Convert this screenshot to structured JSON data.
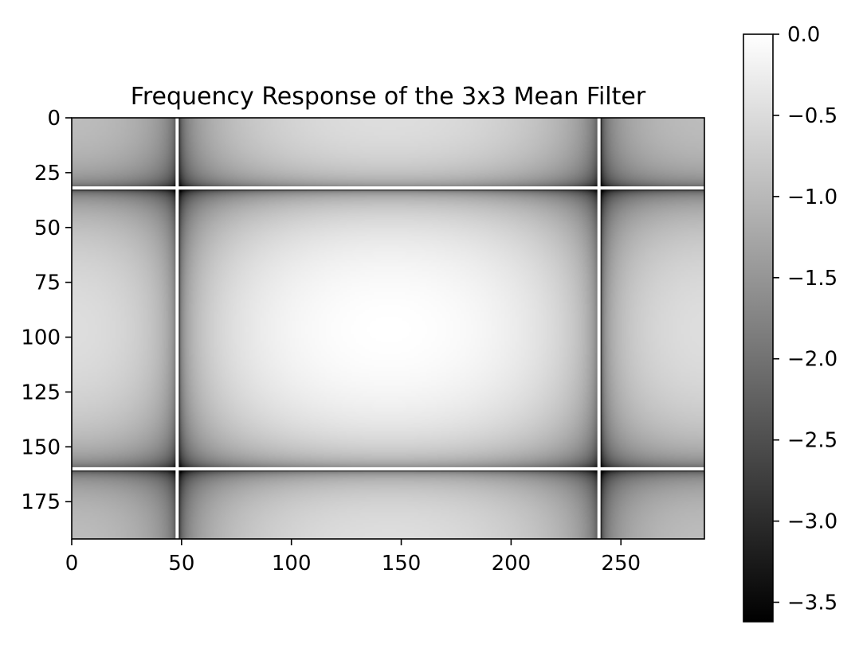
{
  "chart_data": {
    "type": "heatmap",
    "title": "Frequency Response of the 3x3 Mean Filter",
    "xlabel": "",
    "ylabel": "",
    "image_size": {
      "width": 288,
      "height": 192
    },
    "xlim": [
      0,
      288
    ],
    "ylim": [
      192,
      0
    ],
    "x_ticks": [
      0,
      50,
      100,
      150,
      200,
      250
    ],
    "x_tick_labels": [
      "0",
      "50",
      "100",
      "150",
      "200",
      "250"
    ],
    "y_ticks": [
      0,
      25,
      50,
      75,
      100,
      125,
      150,
      175
    ],
    "y_tick_labels": [
      "0",
      "25",
      "50",
      "75",
      "100",
      "125",
      "150",
      "175"
    ],
    "colormap": "gray",
    "colorbar": {
      "vmin": -3.62,
      "vmax": 0.0,
      "ticks": [
        0.0,
        -0.5,
        -1.0,
        -1.5,
        -2.0,
        -2.5,
        -3.0,
        -3.5
      ],
      "tick_labels": [
        "0.0",
        "−0.5",
        "−1.0",
        "−1.5",
        "−2.0",
        "−2.5",
        "−3.0",
        "−3.5"
      ]
    },
    "zero_lines": {
      "x": [
        48,
        240
      ],
      "y": [
        32,
        160
      ]
    },
    "grid": false
  }
}
